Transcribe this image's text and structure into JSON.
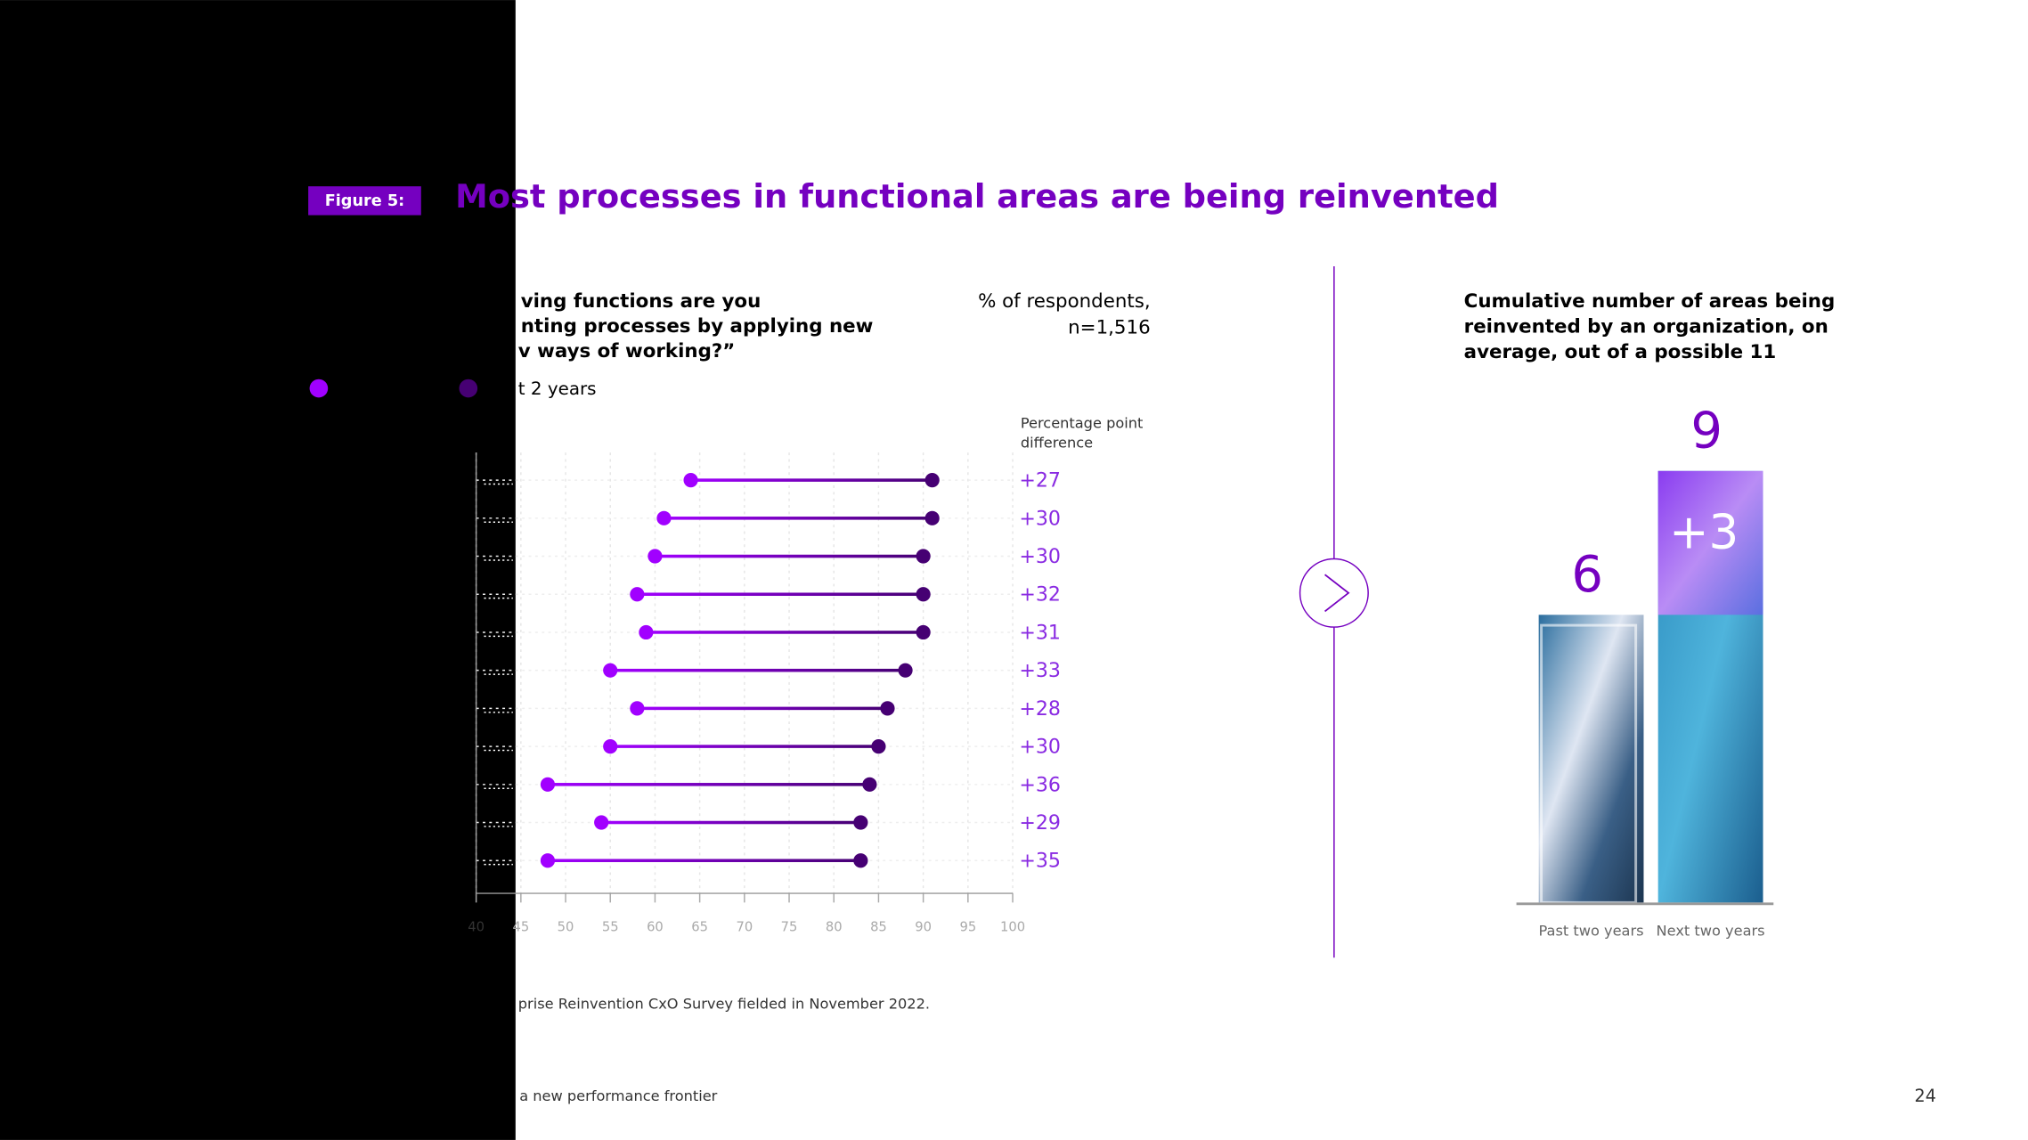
{
  "figure_label": "Figure 5:",
  "title": "Most processes in functional areas are being reinvented",
  "question": [
    "ving functions are you",
    "nting processes by applying new",
    "v ways of working?”"
  ],
  "legend_fragment": "t 2 years",
  "unit_note": [
    "% of respondents,",
    "n=1,516"
  ],
  "source": "prise Reinvention CxO Survey fielded in November 2022.",
  "footer": "a new performance frontier",
  "page_number": "24",
  "chart_data": [
    {
      "type": "dumbbell",
      "categories": [
        null,
        null,
        null,
        null,
        null,
        null,
        null,
        null,
        null,
        null,
        null
      ],
      "series": [
        {
          "color": "#a100ff",
          "values": [
            64,
            61,
            60,
            58,
            59,
            55,
            58,
            55,
            48,
            54,
            48
          ]
        },
        {
          "color": "#460073",
          "values": [
            91,
            91,
            90,
            90,
            90,
            88,
            86,
            85,
            84,
            83,
            83
          ]
        }
      ],
      "xlim": [
        40,
        100
      ],
      "xticks": [
        40,
        45,
        50,
        55,
        60,
        65,
        70,
        75,
        80,
        85,
        90,
        95,
        100
      ],
      "grid": true,
      "difference": {
        "title": [
          "Percentage point",
          "difference"
        ],
        "values": [
          27,
          30,
          30,
          32,
          31,
          33,
          28,
          30,
          36,
          29,
          35
        ],
        "value_labels": [
          "+27",
          "+30",
          "+30",
          "+32",
          "+31",
          "+33",
          "+28",
          "+30",
          "+36",
          "+29",
          "+35"
        ]
      }
    },
    {
      "type": "bar",
      "title": [
        "Cumulative number of areas being",
        "reinvented by an organization, on",
        "average, out of a possible 11"
      ],
      "categories": [
        "Past two years",
        "Next two years"
      ],
      "values": [
        6,
        9
      ],
      "ylim": [
        0,
        9
      ],
      "increment": {
        "value": 3,
        "label": "+3"
      }
    }
  ]
}
